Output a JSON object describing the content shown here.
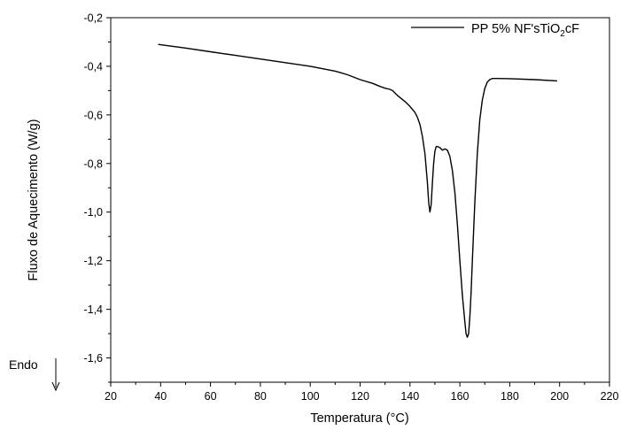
{
  "chart_data": {
    "type": "line",
    "xlabel": "Temperatura (°C)",
    "ylabel": "Fluxo de Aquecimento (W/g)",
    "xlim": [
      20,
      220
    ],
    "ylim": [
      -1.7,
      -0.2
    ],
    "xticks": [
      20,
      40,
      60,
      80,
      100,
      120,
      140,
      160,
      180,
      200,
      220
    ],
    "yticks": [
      -0.2,
      -0.4,
      -0.6,
      -0.8,
      -1.0,
      -1.2,
      -1.4,
      -1.6
    ],
    "xtick_labels": [
      "20",
      "40",
      "60",
      "80",
      "100",
      "120",
      "140",
      "160",
      "180",
      "200",
      "220"
    ],
    "ytick_labels": [
      "-0,2",
      "-0,4",
      "-0,6",
      "-0,8",
      "-1,0",
      "-1,2",
      "-1,4",
      "-1,6"
    ],
    "legend_position": "top-right",
    "annotation": {
      "label": "Endo",
      "symbol": "down-arrow"
    },
    "grid": false,
    "series": [
      {
        "name_parts": [
          "PP 5% NF'sTiO",
          "2",
          "cF"
        ],
        "color": "#000000",
        "x": [
          39,
          50,
          60,
          70,
          80,
          90,
          100,
          110,
          115,
          120,
          125,
          128,
          130,
          132,
          133,
          135,
          138,
          140,
          142,
          143,
          144,
          145,
          146,
          147,
          147.5,
          148,
          148.5,
          149,
          149.5,
          150,
          150.5,
          151,
          152,
          153,
          154,
          155,
          156,
          157,
          158,
          159,
          160,
          161,
          162,
          162.5,
          163,
          163.5,
          164,
          164.5,
          165,
          166,
          167,
          168,
          169,
          170,
          171,
          172,
          173,
          174,
          175,
          180,
          190,
          199
        ],
        "y": [
          -0.31,
          -0.325,
          -0.34,
          -0.355,
          -0.37,
          -0.385,
          -0.4,
          -0.42,
          -0.435,
          -0.455,
          -0.47,
          -0.483,
          -0.49,
          -0.495,
          -0.5,
          -0.52,
          -0.545,
          -0.565,
          -0.59,
          -0.61,
          -0.64,
          -0.69,
          -0.76,
          -0.88,
          -0.96,
          -1.0,
          -0.97,
          -0.88,
          -0.8,
          -0.75,
          -0.73,
          -0.73,
          -0.735,
          -0.745,
          -0.74,
          -0.745,
          -0.77,
          -0.83,
          -0.92,
          -1.05,
          -1.2,
          -1.34,
          -1.45,
          -1.5,
          -1.515,
          -1.5,
          -1.43,
          -1.33,
          -1.2,
          -0.96,
          -0.76,
          -0.62,
          -0.54,
          -0.49,
          -0.465,
          -0.455,
          -0.45,
          -0.45,
          -0.45,
          -0.451,
          -0.455,
          -0.46
        ]
      }
    ]
  }
}
